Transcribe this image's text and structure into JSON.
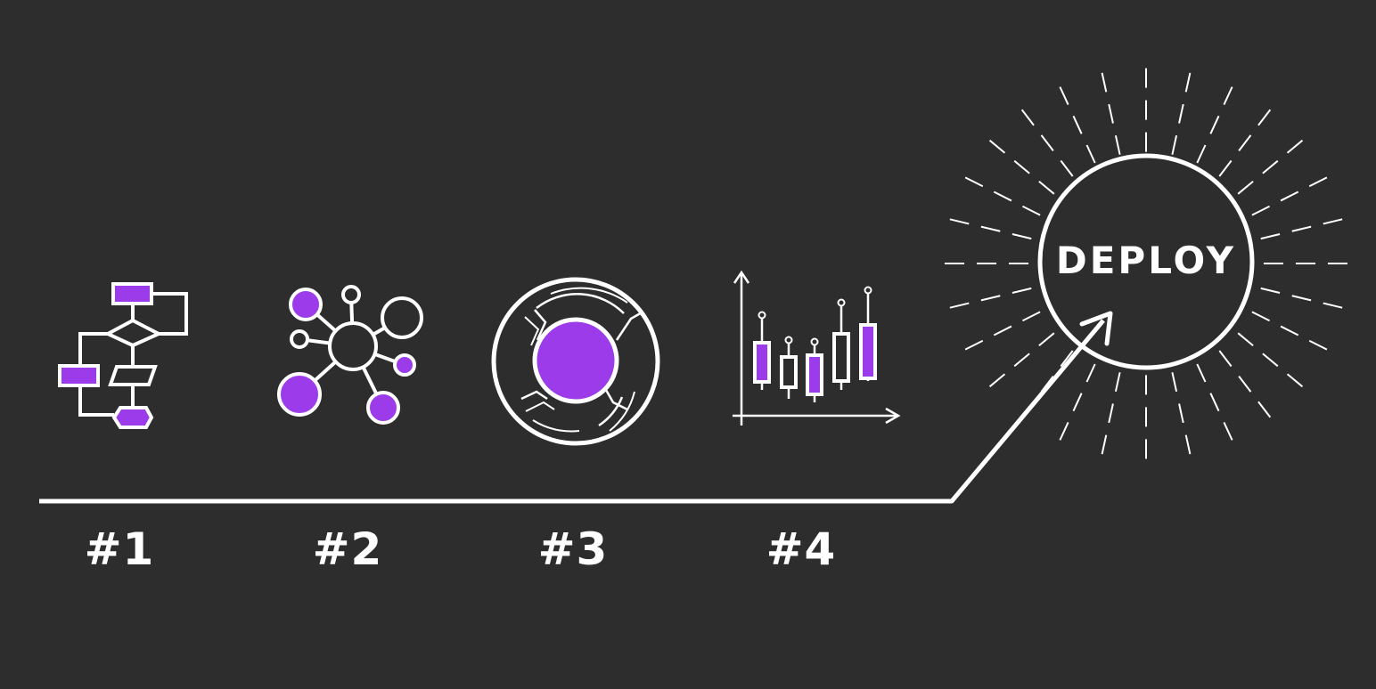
{
  "colors": {
    "background": "#2d2d2d",
    "line": "#ffffff",
    "accent": "#9b3bea"
  },
  "steps": [
    {
      "label": "#1",
      "icon": "flowchart-icon"
    },
    {
      "label": "#2",
      "icon": "network-nodes-icon"
    },
    {
      "label": "#3",
      "icon": "core-sphere-icon"
    },
    {
      "label": "#4",
      "icon": "candlestick-chart-icon"
    }
  ],
  "goal": {
    "label": "DEPLOY",
    "icon": "burst-circle-icon"
  }
}
